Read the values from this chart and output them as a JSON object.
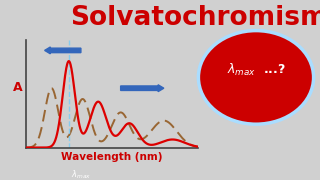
{
  "title": "Solvatochromism",
  "title_color": "#cc0000",
  "title_fontsize": 19,
  "bg_color": "#d0d0d0",
  "xlabel": "Wavelength (nm)",
  "ylabel": "A",
  "xlabel_color": "#cc0000",
  "ylabel_color": "#cc0000",
  "red_line_color": "#dd0000",
  "dashed_line_color": "#996633",
  "vline_color": "#88ccee",
  "ellipse_color": "#cc0000",
  "ellipse_edge_color": "#aaddff",
  "ellipse_text_1": "λ",
  "ellipse_text_2": "max  ...?",
  "arrow_color": "#3366bb",
  "lambda_max_text": "λ",
  "lambda_max_sub": "max"
}
